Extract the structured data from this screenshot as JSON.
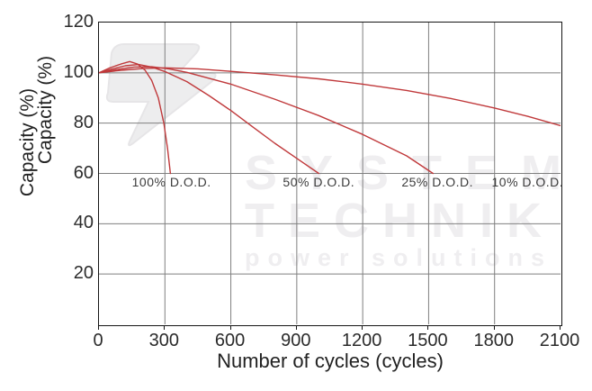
{
  "chart_data": {
    "type": "line",
    "title": "",
    "xlabel": "Number of cycles (cycles)",
    "ylabel": "Capacity (%)",
    "xlim": [
      0,
      2100
    ],
    "ylim": [
      0,
      120
    ],
    "xticks": [
      0,
      300,
      600,
      900,
      1200,
      1500,
      1800,
      2100
    ],
    "yticks": [
      120,
      100,
      80,
      60,
      40,
      20
    ],
    "x_gridlines": [
      300,
      600,
      900,
      1200,
      1500,
      1800
    ],
    "y_gridlines": [
      20,
      40,
      60,
      80,
      100
    ],
    "grid": true,
    "legend_position": "none",
    "line_color": "#c0393b",
    "grid_color": "#7f7f7f",
    "series": [
      {
        "name": "100% D.O.D.",
        "points": [
          [
            0,
            100
          ],
          [
            50,
            102
          ],
          [
            100,
            103.5
          ],
          [
            140,
            104.5
          ],
          [
            175,
            103.5
          ],
          [
            210,
            101
          ],
          [
            240,
            97
          ],
          [
            270,
            90
          ],
          [
            295,
            80
          ],
          [
            312,
            70
          ],
          [
            325,
            60
          ]
        ]
      },
      {
        "name": "50% D.O.D.",
        "points": [
          [
            0,
            100
          ],
          [
            60,
            101.5
          ],
          [
            120,
            102.8
          ],
          [
            180,
            103.3
          ],
          [
            240,
            102.3
          ],
          [
            300,
            100.5
          ],
          [
            400,
            96.5
          ],
          [
            500,
            91
          ],
          [
            600,
            85
          ],
          [
            700,
            78.5
          ],
          [
            800,
            72
          ],
          [
            900,
            66
          ],
          [
            1000,
            60
          ]
        ]
      },
      {
        "name": "25% D.O.D.",
        "points": [
          [
            0,
            100
          ],
          [
            80,
            101.3
          ],
          [
            160,
            102.3
          ],
          [
            240,
            102.4
          ],
          [
            320,
            101.5
          ],
          [
            400,
            100.2
          ],
          [
            600,
            95.5
          ],
          [
            800,
            89.5
          ],
          [
            1000,
            83
          ],
          [
            1200,
            75.5
          ],
          [
            1400,
            67
          ],
          [
            1520,
            60
          ]
        ]
      },
      {
        "name": "10% D.O.D.",
        "points": [
          [
            0,
            100
          ],
          [
            100,
            101
          ],
          [
            200,
            101.7
          ],
          [
            300,
            102
          ],
          [
            450,
            101.6
          ],
          [
            600,
            100.6
          ],
          [
            800,
            99.2
          ],
          [
            1000,
            97.6
          ],
          [
            1200,
            95.5
          ],
          [
            1400,
            93
          ],
          [
            1600,
            89.8
          ],
          [
            1800,
            86
          ],
          [
            1950,
            82.7
          ],
          [
            2100,
            79
          ]
        ]
      }
    ],
    "annotations": [
      {
        "text": "100% D.O.D.",
        "x": 330,
        "y": 56.5
      },
      {
        "text": "50% D.O.D.",
        "x": 1000,
        "y": 56.5
      },
      {
        "text": "25% D.O.D.",
        "x": 1540,
        "y": 56.5
      },
      {
        "text": "10% D.O.D.",
        "x": 1950,
        "y": 56.5
      }
    ]
  },
  "watermark": {
    "line1": "SYSTEM",
    "line2": "TECHNIK",
    "line3": "power solutions",
    "color": "#efeef0"
  }
}
